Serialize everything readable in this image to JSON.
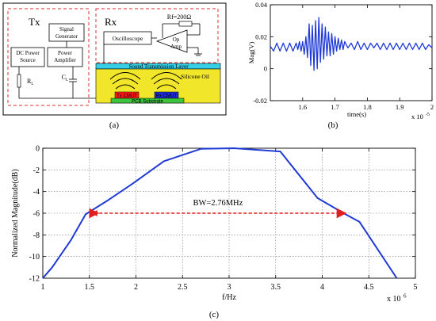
{
  "panel_a": {
    "tx_label": "Tx",
    "rx_label": "Rx",
    "signal_generator": [
      "Signal",
      "Generator"
    ],
    "dc_power_source": [
      "DC Power",
      "Source"
    ],
    "power_amplifier": [
      "Power",
      "Amplifier"
    ],
    "rl_label": "R",
    "rl_sub": "L",
    "cl_label": "C",
    "cl_sub": "L",
    "oscilloscope": "Oscilloscope",
    "rf_label": "Rf=200Ω",
    "op_amp": [
      "Op",
      "Amp"
    ],
    "sound_layer": "Sound Transmission Layer",
    "silicone_oil": "Silicone Oil",
    "tx_cmut": "Tx CMUT",
    "rx_cmut": "Rx CMUT",
    "pcb_substrate": "PCB Substrate",
    "caption": "(a)",
    "colors": {
      "frame": "#e03030",
      "sound_layer": "#35d0e8",
      "oil": "#f2e62a",
      "tx_cmut": "#ff1a1a",
      "rx_cmut": "#1c2fd8",
      "pcb": "#3cc53c"
    }
  },
  "chart_data": [
    {
      "id": "b",
      "type": "line",
      "ylabel": "Mag(V)",
      "xlabel": "time(s)",
      "x_exponent": "x 10",
      "x_exponent_power": "-5",
      "caption": "(b)",
      "xlim": [
        1.5,
        2.0
      ],
      "ylim": [
        -0.02,
        0.04
      ],
      "xticks": [
        "1.6",
        "1.7",
        "1.8",
        "1.9",
        "2"
      ],
      "xtick_values": [
        1.6,
        1.7,
        1.8,
        1.9,
        2.0
      ],
      "yticks": [
        "-0.02",
        "0",
        "0.02",
        "0.04"
      ],
      "ytick_values": [
        -0.02,
        0,
        0.02,
        0.04
      ],
      "grid": false,
      "color": "#1f3ad6",
      "series": [
        {
          "x": [
            1.5,
            1.51,
            1.52,
            1.53,
            1.54,
            1.55,
            1.56,
            1.57,
            1.58,
            1.585,
            1.59,
            1.595,
            1.6,
            1.605,
            1.61,
            1.615,
            1.62,
            1.625,
            1.63,
            1.635,
            1.64,
            1.645,
            1.65,
            1.655,
            1.66,
            1.665,
            1.67,
            1.675,
            1.68,
            1.685,
            1.69,
            1.695,
            1.7,
            1.705,
            1.71,
            1.715,
            1.72,
            1.725,
            1.73,
            1.74,
            1.75,
            1.76,
            1.77,
            1.78,
            1.79,
            1.8,
            1.81,
            1.82,
            1.83,
            1.84,
            1.85,
            1.86,
            1.87,
            1.88,
            1.89,
            1.9,
            1.91,
            1.92,
            1.93,
            1.94,
            1.95,
            1.96,
            1.97,
            1.98,
            1.99,
            2.0
          ],
          "y": [
            0.014,
            0.011,
            0.016,
            0.011,
            0.016,
            0.011,
            0.016,
            0.011,
            0.016,
            0.012,
            0.017,
            0.011,
            0.017,
            0.009,
            0.02,
            0.007,
            0.028,
            0.002,
            0.027,
            -0.001,
            0.03,
            0.0,
            0.032,
            0.004,
            0.028,
            0.006,
            0.026,
            0.008,
            0.023,
            0.008,
            0.022,
            0.009,
            0.02,
            0.011,
            0.019,
            0.012,
            0.018,
            0.012,
            0.017,
            0.013,
            0.016,
            0.012,
            0.017,
            0.012,
            0.016,
            0.012,
            0.016,
            0.013,
            0.016,
            0.012,
            0.016,
            0.012,
            0.016,
            0.012,
            0.016,
            0.012,
            0.016,
            0.012,
            0.016,
            0.012,
            0.016,
            0.012,
            0.016,
            0.012,
            0.015,
            0.013
          ]
        }
      ]
    },
    {
      "id": "c",
      "type": "line",
      "ylabel": "Normalized Magnitude(dB)",
      "xlabel": "f/Hz",
      "x_exponent": "x 10",
      "x_exponent_power": "6",
      "caption": "(c)",
      "xlim": [
        1,
        5
      ],
      "ylim": [
        -12,
        0
      ],
      "xticks": [
        "1",
        "1.5",
        "2",
        "2.5",
        "3",
        "3.5",
        "4",
        "4.5",
        "5"
      ],
      "xtick_values": [
        1,
        1.5,
        2,
        2.5,
        3,
        3.5,
        4,
        4.5,
        5
      ],
      "yticks": [
        "0",
        "-2",
        "-4",
        "-6",
        "-8",
        "-10",
        "-12"
      ],
      "ytick_values": [
        0,
        -2,
        -4,
        -6,
        -8,
        -10,
        -12
      ],
      "grid": true,
      "color": "#1f3ad6",
      "series": [
        {
          "x": [
            1.0,
            1.1,
            1.3,
            1.46,
            1.7,
            1.96,
            2.3,
            2.7,
            3.05,
            3.55,
            3.95,
            4.25,
            4.4,
            4.8
          ],
          "y": [
            -12.0,
            -11.0,
            -8.5,
            -6.1,
            -4.8,
            -3.3,
            -1.2,
            -0.05,
            0.0,
            -0.3,
            -4.6,
            -6.1,
            -6.8,
            -12.0
          ]
        }
      ],
      "annotation": {
        "label": "BW=2.76MHz",
        "x_start": 1.5,
        "x_end": 4.26,
        "y": -6,
        "color": "#e02020"
      }
    }
  ]
}
